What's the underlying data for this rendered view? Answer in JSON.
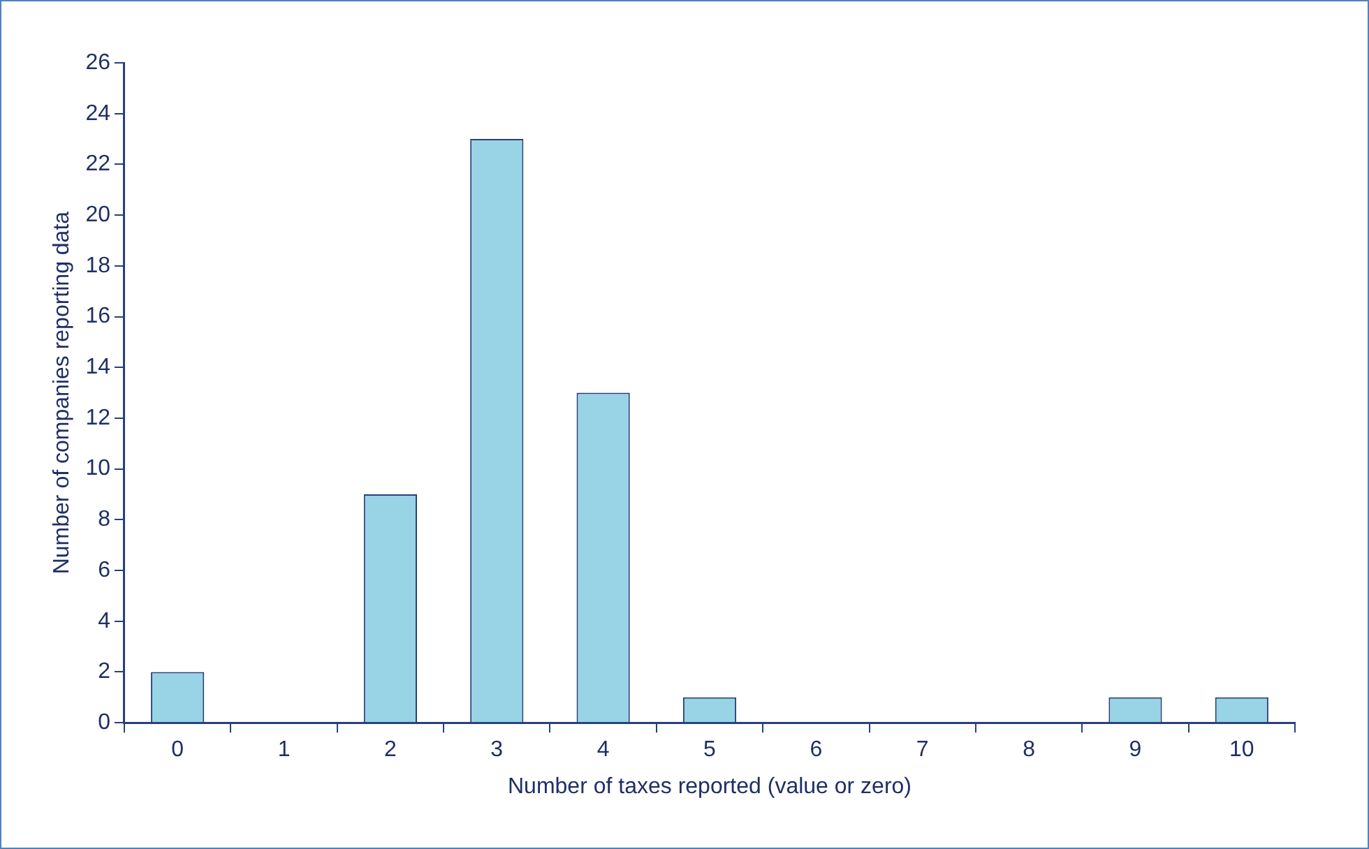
{
  "chart_data": {
    "type": "bar",
    "xlabel": "Number of taxes reported (value or zero)",
    "ylabel": "Number of companies reporting data",
    "categories": [
      "0",
      "1",
      "2",
      "3",
      "4",
      "5",
      "6",
      "7",
      "8",
      "9",
      "10"
    ],
    "values": [
      2,
      0,
      9,
      23,
      13,
      1,
      0,
      0,
      0,
      1,
      1
    ],
    "color": "#99d3e6",
    "ylim": [
      0,
      26
    ],
    "yticks": [
      0,
      2,
      4,
      6,
      8,
      10,
      12,
      14,
      16,
      18,
      20,
      22,
      24,
      26
    ],
    "grid": false,
    "legend": false
  }
}
